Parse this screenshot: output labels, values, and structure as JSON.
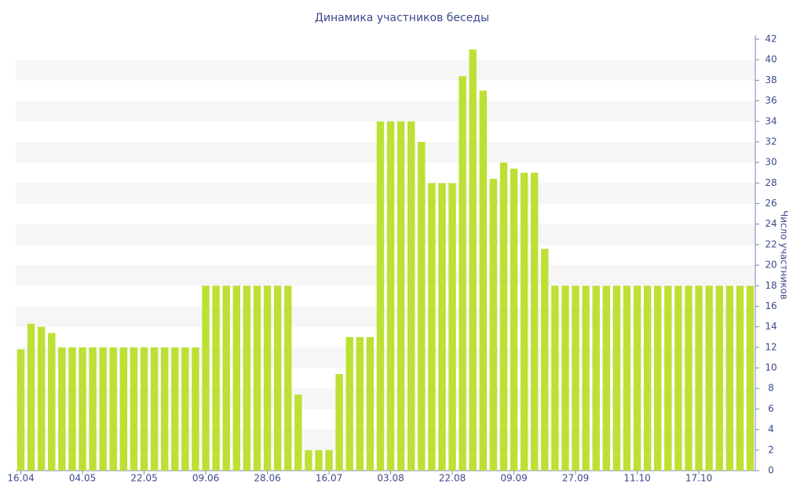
{
  "chart_data": {
    "type": "bar",
    "title": "Динамика участников беседы",
    "y_label": "Число участников",
    "categories": [
      "16.04",
      null,
      null,
      null,
      null,
      null,
      "04.05",
      null,
      null,
      null,
      null,
      null,
      "22.05",
      null,
      null,
      null,
      null,
      null,
      "09.06",
      null,
      null,
      null,
      null,
      null,
      "28.06",
      null,
      null,
      null,
      null,
      null,
      "16.07",
      null,
      null,
      null,
      null,
      null,
      "03.08",
      null,
      null,
      null,
      null,
      null,
      "22.08",
      null,
      null,
      null,
      null,
      null,
      "09.09",
      null,
      null,
      null,
      null,
      null,
      "27.09",
      null,
      null,
      null,
      null,
      null,
      "11.10",
      null,
      null,
      null,
      null,
      null,
      "17.10",
      null,
      null,
      null,
      null,
      null
    ],
    "values": [
      11.8,
      14.3,
      14,
      13.4,
      12,
      12,
      12,
      12,
      12,
      12,
      12,
      12,
      12,
      12,
      12,
      12,
      12,
      12,
      18,
      18,
      18,
      18,
      18,
      18,
      18,
      18,
      18,
      7.4,
      2,
      2,
      2,
      9.4,
      13,
      13,
      13,
      34,
      34,
      34,
      34,
      32,
      28,
      28,
      28,
      38.4,
      41,
      37,
      28.4,
      30,
      29.4,
      29,
      29,
      21.6,
      18,
      18,
      18,
      18,
      18,
      18,
      18,
      18,
      18,
      18,
      18,
      18,
      18,
      18,
      18,
      18,
      18,
      18,
      18,
      18
    ],
    "color": "#bde035",
    "ylim": [
      0,
      42
    ],
    "yticks": [
      0,
      2,
      4,
      6,
      8,
      10,
      12,
      14,
      16,
      18,
      20,
      22,
      24,
      26,
      28,
      30,
      32,
      34,
      36,
      38,
      40,
      42
    ],
    "y_axis_side": "right",
    "grid": "stripes"
  }
}
